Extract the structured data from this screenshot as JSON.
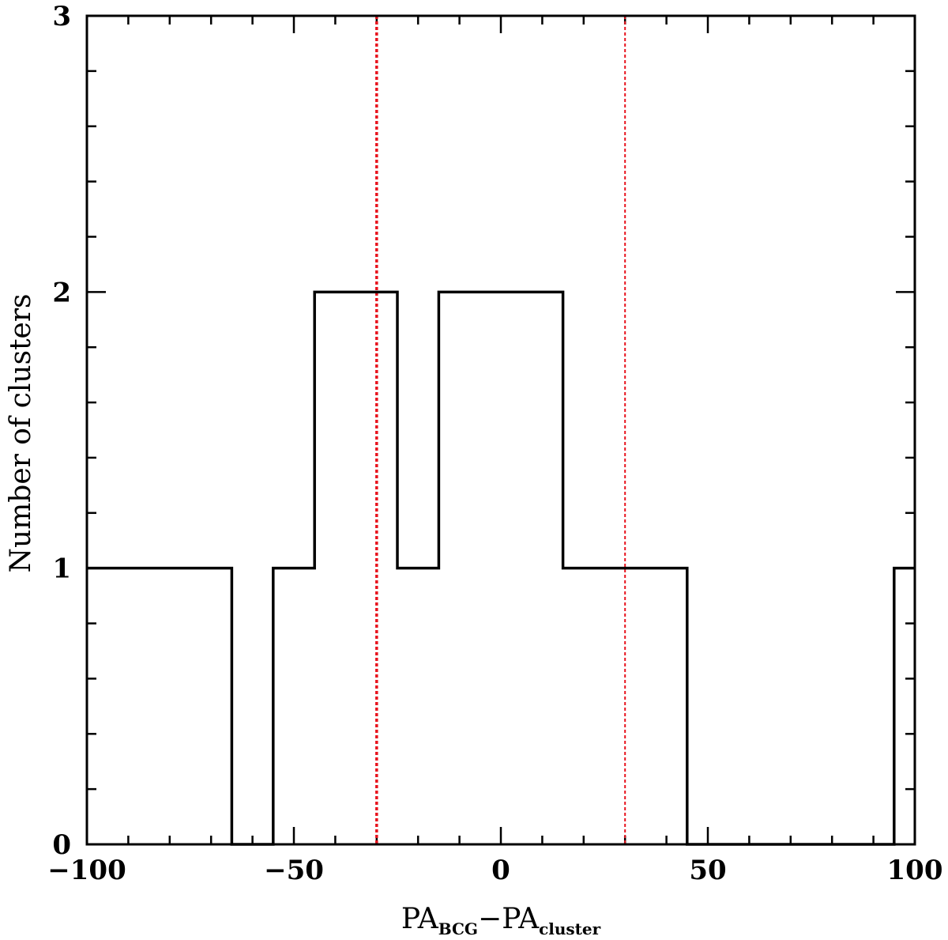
{
  "chart_data": {
    "type": "bar",
    "bin_edges": [
      -100,
      -65,
      -55,
      -45,
      -25,
      -15,
      15,
      45,
      95,
      100
    ],
    "values": [
      1,
      0,
      1,
      2,
      1,
      2,
      1,
      0,
      1
    ],
    "xlim": [
      -100,
      100
    ],
    "ylim": [
      0,
      3
    ],
    "x_ticks": [
      -100,
      -50,
      0,
      50,
      100
    ],
    "y_ticks": [
      0,
      1,
      2,
      3
    ],
    "ylabel": "Number of clusters",
    "xlabel": {
      "part1": "PA",
      "sub1": "BCG",
      "op": "−",
      "part2": "PA",
      "sub2": "cluster"
    },
    "reference_lines": [
      {
        "x": -30,
        "color": "#e8141e"
      },
      {
        "x": 30,
        "color": "#e8141e"
      }
    ],
    "grid": false,
    "legend": "none",
    "line_color": "#000000"
  }
}
